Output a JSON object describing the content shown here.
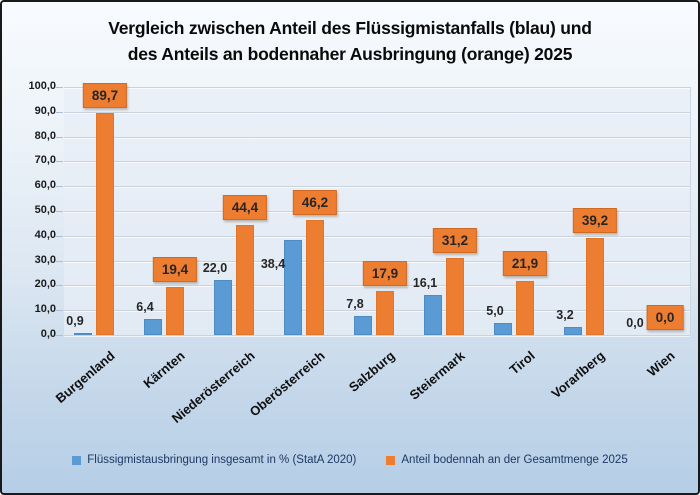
{
  "title": {
    "line1": "Vergleich zwischen Anteil des Flüssigmistanfalls (blau) und",
    "line2": "des Anteils an bodennaher Ausbringung (orange) 2025"
  },
  "chart_data": {
    "type": "bar",
    "title": "Vergleich zwischen Anteil des Flüssigmistanfalls (blau) und des Anteils an bodennaher Ausbringung (orange) 2025",
    "categories": [
      "Burgenland",
      "Kärnten",
      "Niederösterreich",
      "Oberösterreich",
      "Salzburg",
      "Steiermark",
      "Tirol",
      "Vorarlberg",
      "Wien"
    ],
    "series": [
      {
        "name": "Flüssigmistausbringung insgesamt in % (StatA 2020)",
        "color": "#5B9BD5",
        "values": [
          0.9,
          6.4,
          22.0,
          38.4,
          7.8,
          16.1,
          5.0,
          3.2,
          0.0
        ],
        "labels": [
          "0,9",
          "6,4",
          "22,0",
          "38,4",
          "7,8",
          "16,1",
          "5,0",
          "3,2",
          "0,0"
        ]
      },
      {
        "name": "Anteil bodennah an der Gesamtmenge 2025",
        "color": "#ED7D31",
        "values": [
          89.7,
          19.4,
          44.4,
          46.2,
          17.9,
          31.2,
          21.9,
          39.2,
          0.0
        ],
        "labels": [
          "89,7",
          "19,4",
          "44,4",
          "46,2",
          "17,9",
          "31,2",
          "21,9",
          "39,2",
          "0,0"
        ]
      }
    ],
    "xlabel": "",
    "ylabel": "",
    "ylim": [
      0,
      100
    ],
    "ytick_step": 10,
    "ytick_labels": [
      "0,0",
      "10,0",
      "20,0",
      "30,0",
      "40,0",
      "50,0",
      "60,0",
      "70,0",
      "80,0",
      "90,0",
      "100,0"
    ],
    "grid": true,
    "legend_position": "bottom",
    "value_label_style": "orange series labels shown in orange filled boxes, blue series labels plain dark text"
  },
  "legend": {
    "items": [
      {
        "label": "Flüssigmistausbringung insgesamt in % (StatA 2020)",
        "color": "#5B9BD5"
      },
      {
        "label": "Anteil bodennah an der Gesamtmenge 2025",
        "color": "#ED7D31"
      }
    ]
  },
  "colors": {
    "bar_blue": "#5B9BD5",
    "bar_orange": "#ED7D31",
    "label_box_bg": "#ED7D31",
    "text_dark": "#262626",
    "legend_text": "#1F3864",
    "panel_border": "#191919",
    "plot_bg": "#E5EDF6",
    "gridline": "#C9D3DE"
  }
}
